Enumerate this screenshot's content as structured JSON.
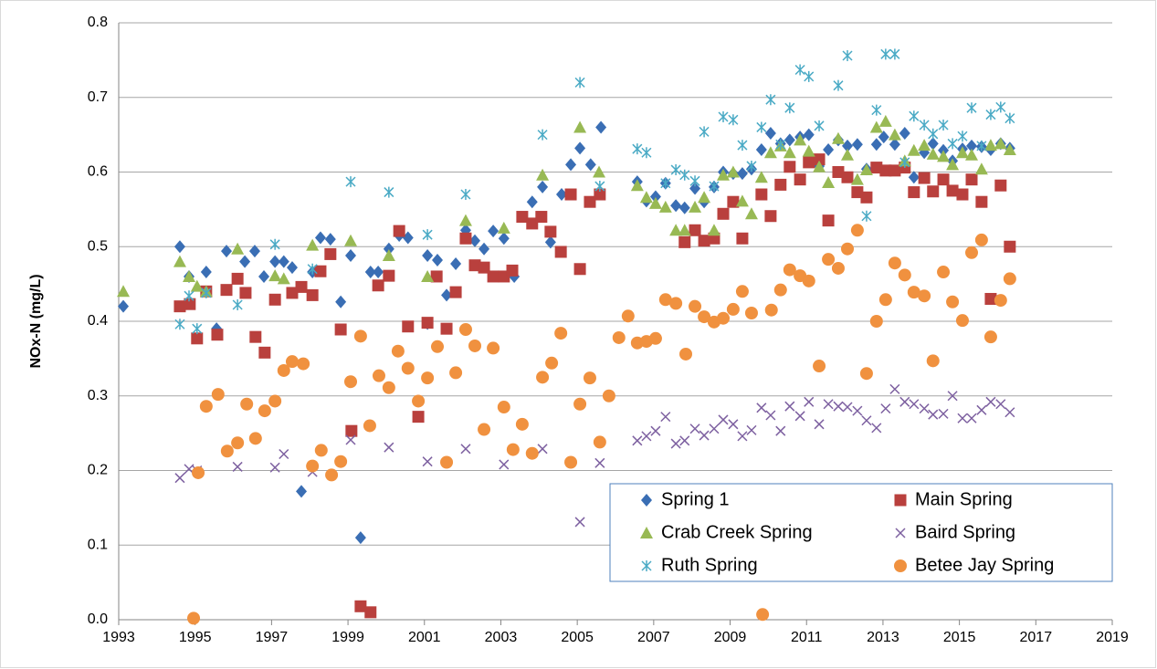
{
  "chart_data": {
    "type": "scatter",
    "y_label": "NOx-N (mg/L)",
    "xlim": [
      1993,
      2019
    ],
    "xticks": [
      1993,
      1995,
      1997,
      1999,
      2001,
      2003,
      2005,
      2007,
      2009,
      2011,
      2013,
      2015,
      2017,
      2019
    ],
    "ylim": [
      0,
      0.8
    ],
    "yticks": [
      {
        "value": 0,
        "label": "0.0"
      },
      0.1,
      0.2,
      0.3,
      0.4,
      0.5,
      0.6,
      0.7,
      0.8
    ],
    "grid": true,
    "legend": "bottom-right",
    "series": [
      {
        "name": "Spring 1",
        "color": "#3a6eb4",
        "marker": "diamond",
        "x": [
          1993.12,
          1994.6,
          1994.84,
          1995.29,
          1995.56,
          1995.82,
          1996.3,
          1996.56,
          1996.8,
          1997.09,
          1997.32,
          1997.54,
          1997.78,
          1998.07,
          1998.28,
          1998.54,
          1998.81,
          1999.07,
          1999.33,
          1999.59,
          1999.79,
          2000.07,
          2000.34,
          2000.57,
          2001.08,
          2001.08,
          2001.34,
          2001.58,
          2001.82,
          2002.08,
          2002.32,
          2002.56,
          2002.8,
          2003.08,
          2003.35,
          2003.82,
          2004.09,
          2004.3,
          2004.59,
          2004.83,
          2005.07,
          2005.35,
          2005.62,
          2006.57,
          2006.81,
          2007.05,
          2007.31,
          2007.58,
          2007.81,
          2008.08,
          2008.32,
          2008.58,
          2008.82,
          2009.08,
          2009.32,
          2009.56,
          2009.82,
          2010.06,
          2010.32,
          2010.56,
          2010.83,
          2011.06,
          2011.33,
          2011.57,
          2011.83,
          2012.07,
          2012.33,
          2012.57,
          2012.83,
          2013.02,
          2013.31,
          2013.57,
          2013.81,
          2014.08,
          2014.31,
          2014.58,
          2014.82,
          2015.08,
          2015.32,
          2015.58,
          2015.82,
          2016.08,
          2016.32
        ],
        "values": [
          0.42,
          0.5,
          0.46,
          0.466,
          0.39,
          0.494,
          0.48,
          0.494,
          0.46,
          0.48,
          0.48,
          0.472,
          0.172,
          0.466,
          0.512,
          0.51,
          0.426,
          0.488,
          0.11,
          0.466,
          0.466,
          0.497,
          0.515,
          0.512,
          0.397,
          0.488,
          0.482,
          0.435,
          0.477,
          0.522,
          0.508,
          0.497,
          0.521,
          0.511,
          0.46,
          0.56,
          0.58,
          0.506,
          0.57,
          0.61,
          0.632,
          0.61,
          0.66,
          0.587,
          0.561,
          0.567,
          0.585,
          0.555,
          0.552,
          0.578,
          0.56,
          0.58,
          0.6,
          0.598,
          0.598,
          0.604,
          0.63,
          0.652,
          0.638,
          0.643,
          0.647,
          0.65,
          0.608,
          0.63,
          0.643,
          0.635,
          0.637,
          0.604,
          0.637,
          0.647,
          0.637,
          0.652,
          0.593,
          0.626,
          0.638,
          0.629,
          0.615,
          0.631,
          0.635,
          0.634,
          0.63,
          0.638,
          0.632
        ]
      },
      {
        "name": "Main Spring",
        "color": "#b9403d",
        "marker": "square",
        "x": [
          1994.6,
          1994.86,
          1995.05,
          1995.29,
          1995.58,
          1995.82,
          1996.11,
          1996.32,
          1996.58,
          1996.82,
          1997.09,
          1997.54,
          1997.78,
          1998.07,
          1998.28,
          1998.54,
          1998.81,
          1999.09,
          1999.33,
          1999.59,
          1999.79,
          2000.07,
          2000.34,
          2000.57,
          2000.84,
          2001.08,
          2001.32,
          2001.58,
          2001.82,
          2002.08,
          2002.32,
          2002.56,
          2002.8,
          2003.08,
          2003.3,
          2003.56,
          2003.82,
          2004.06,
          2004.3,
          2004.57,
          2004.83,
          2005.07,
          2005.33,
          2005.59,
          2007.81,
          2008.08,
          2008.32,
          2008.58,
          2008.82,
          2009.08,
          2009.32,
          2009.82,
          2010.06,
          2010.32,
          2010.56,
          2010.83,
          2011.06,
          2011.33,
          2011.57,
          2011.83,
          2012.07,
          2012.33,
          2012.57,
          2012.83,
          2013.07,
          2013.31,
          2013.57,
          2013.81,
          2014.08,
          2014.31,
          2014.58,
          2014.82,
          2015.08,
          2015.32,
          2015.58,
          2015.82,
          2016.08,
          2016.32
        ],
        "values": [
          0.42,
          0.423,
          0.377,
          0.44,
          0.382,
          0.442,
          0.457,
          0.438,
          0.379,
          0.358,
          0.429,
          0.438,
          0.446,
          0.435,
          0.467,
          0.49,
          0.389,
          0.253,
          0.018,
          0.01,
          0.448,
          0.461,
          0.521,
          0.393,
          0.272,
          0.398,
          0.46,
          0.39,
          0.439,
          0.511,
          0.475,
          0.472,
          0.46,
          0.46,
          0.468,
          0.54,
          0.531,
          0.54,
          0.52,
          0.493,
          0.57,
          0.47,
          0.56,
          0.57,
          0.506,
          0.522,
          0.508,
          0.511,
          0.544,
          0.56,
          0.511,
          0.57,
          0.541,
          0.583,
          0.607,
          0.59,
          0.613,
          0.617,
          0.535,
          0.6,
          0.593,
          0.573,
          0.566,
          0.606,
          0.602,
          0.602,
          0.606,
          0.573,
          0.592,
          0.574,
          0.59,
          0.575,
          0.57,
          0.59,
          0.56,
          0.43,
          0.582,
          0.5
        ]
      },
      {
        "name": "Crab Creek Spring",
        "color": "#98b954",
        "marker": "triangle",
        "x": [
          1993.12,
          1994.6,
          1994.84,
          1995.05,
          1995.29,
          1996.11,
          1997.09,
          1997.32,
          1998.07,
          1999.07,
          2000.07,
          2001.08,
          2002.08,
          2003.08,
          2004.09,
          2005.07,
          2005.57,
          2006.57,
          2006.81,
          2007.05,
          2007.31,
          2007.58,
          2007.81,
          2008.08,
          2008.32,
          2008.58,
          2008.82,
          2009.08,
          2009.32,
          2009.56,
          2009.82,
          2010.06,
          2010.32,
          2010.56,
          2010.83,
          2011.06,
          2011.33,
          2011.57,
          2011.83,
          2012.07,
          2012.33,
          2012.57,
          2012.83,
          2013.07,
          2013.31,
          2013.57,
          2013.81,
          2014.08,
          2014.31,
          2014.58,
          2014.82,
          2015.08,
          2015.32,
          2015.58,
          2015.82,
          2016.08,
          2016.32
        ],
        "values": [
          0.44,
          0.48,
          0.46,
          0.447,
          0.44,
          0.497,
          0.461,
          0.457,
          0.502,
          0.508,
          0.488,
          0.46,
          0.535,
          0.525,
          0.596,
          0.66,
          0.6,
          0.582,
          0.566,
          0.558,
          0.553,
          0.522,
          0.522,
          0.553,
          0.566,
          0.522,
          0.596,
          0.6,
          0.561,
          0.544,
          0.593,
          0.626,
          0.635,
          0.626,
          0.643,
          0.628,
          0.607,
          0.586,
          0.645,
          0.623,
          0.59,
          0.603,
          0.66,
          0.668,
          0.65,
          0.615,
          0.629,
          0.636,
          0.624,
          0.621,
          0.61,
          0.626,
          0.623,
          0.604,
          0.636,
          0.638,
          0.63
        ]
      },
      {
        "name": "Baird Spring",
        "color": "#7d60a0",
        "marker": "x",
        "x": [
          1994.6,
          1994.84,
          1995.05,
          1996.11,
          1997.09,
          1997.32,
          1998.07,
          1999.07,
          2000.07,
          2001.08,
          2002.08,
          2003.08,
          2004.09,
          2005.07,
          2005.59,
          2006.57,
          2006.81,
          2007.05,
          2007.31,
          2007.58,
          2007.81,
          2008.08,
          2008.32,
          2008.58,
          2008.82,
          2009.08,
          2009.32,
          2009.56,
          2009.82,
          2010.06,
          2010.32,
          2010.56,
          2010.83,
          2011.06,
          2011.33,
          2011.57,
          2011.83,
          2012.07,
          2012.33,
          2012.57,
          2012.83,
          2013.07,
          2013.31,
          2013.57,
          2013.81,
          2014.08,
          2014.31,
          2014.58,
          2014.82,
          2015.08,
          2015.32,
          2015.58,
          2015.82,
          2016.08,
          2016.32
        ],
        "values": [
          0.19,
          0.202,
          0.2,
          0.205,
          0.204,
          0.222,
          0.198,
          0.241,
          0.231,
          0.212,
          0.229,
          0.208,
          0.229,
          0.131,
          0.21,
          0.24,
          0.246,
          0.253,
          0.272,
          0.236,
          0.24,
          0.256,
          0.247,
          0.256,
          0.268,
          0.262,
          0.246,
          0.254,
          0.284,
          0.274,
          0.253,
          0.286,
          0.273,
          0.292,
          0.262,
          0.289,
          0.286,
          0.285,
          0.28,
          0.267,
          0.257,
          0.283,
          0.309,
          0.292,
          0.289,
          0.283,
          0.275,
          0.276,
          0.3,
          0.27,
          0.27,
          0.281,
          0.292,
          0.289,
          0.278
        ]
      },
      {
        "name": "Ruth Spring",
        "color": "#4aaac5",
        "marker": "asterisk",
        "x": [
          1994.6,
          1994.84,
          1995.05,
          1995.29,
          1996.11,
          1997.09,
          1998.07,
          1999.07,
          2000.07,
          2001.08,
          2002.08,
          2004.09,
          2005.07,
          2005.59,
          2006.57,
          2006.81,
          2007.31,
          2007.58,
          2007.81,
          2008.08,
          2008.32,
          2008.58,
          2008.82,
          2009.08,
          2009.32,
          2009.56,
          2009.82,
          2010.06,
          2010.32,
          2010.56,
          2010.83,
          2011.06,
          2011.33,
          2011.83,
          2012.07,
          2012.57,
          2012.83,
          2013.07,
          2013.31,
          2013.57,
          2013.81,
          2014.08,
          2014.31,
          2014.58,
          2014.82,
          2015.08,
          2015.32,
          2015.58,
          2015.82,
          2016.08,
          2016.32
        ],
        "values": [
          0.396,
          0.434,
          0.39,
          0.438,
          0.422,
          0.503,
          0.47,
          0.587,
          0.573,
          0.516,
          0.57,
          0.65,
          0.72,
          0.581,
          0.631,
          0.626,
          0.585,
          0.603,
          0.596,
          0.588,
          0.654,
          0.581,
          0.674,
          0.67,
          0.636,
          0.608,
          0.66,
          0.697,
          0.637,
          0.686,
          0.737,
          0.728,
          0.662,
          0.716,
          0.756,
          0.541,
          0.683,
          0.758,
          0.758,
          0.613,
          0.675,
          0.663,
          0.651,
          0.663,
          0.638,
          0.648,
          0.686,
          0.635,
          0.677,
          0.687,
          0.672
        ]
      },
      {
        "name": "Betee Jay Spring",
        "color": "#f0913f",
        "marker": "circle",
        "x": [
          1994.96,
          1995.08,
          1995.29,
          1995.6,
          1995.84,
          1996.11,
          1996.35,
          1996.58,
          1996.82,
          1997.09,
          1997.32,
          1997.54,
          1997.83,
          1998.07,
          1998.3,
          1998.57,
          1998.81,
          1999.07,
          1999.33,
          1999.57,
          1999.81,
          2000.07,
          2000.31,
          2000.57,
          2000.84,
          2001.08,
          2001.34,
          2001.58,
          2001.82,
          2002.08,
          2002.32,
          2002.56,
          2002.8,
          2003.08,
          2003.32,
          2003.56,
          2003.82,
          2004.09,
          2004.33,
          2004.57,
          2004.83,
          2005.07,
          2005.33,
          2005.59,
          2005.83,
          2006.09,
          2006.33,
          2006.57,
          2006.81,
          2007.05,
          2007.31,
          2007.58,
          2007.84,
          2008.08,
          2008.32,
          2008.58,
          2008.82,
          2009.08,
          2009.32,
          2009.56,
          2009.85,
          2010.08,
          2010.32,
          2010.56,
          2010.83,
          2011.06,
          2011.33,
          2011.57,
          2011.83,
          2012.07,
          2012.33,
          2012.57,
          2012.83,
          2013.07,
          2013.31,
          2013.57,
          2013.81,
          2014.08,
          2014.31,
          2014.58,
          2014.82,
          2015.08,
          2015.32,
          2015.58,
          2015.82,
          2016.08,
          2016.32
        ],
        "values": [
          0.002,
          0.197,
          0.286,
          0.302,
          0.226,
          0.237,
          0.289,
          0.243,
          0.28,
          0.293,
          0.334,
          0.346,
          0.343,
          0.206,
          0.227,
          0.194,
          0.212,
          0.319,
          0.38,
          0.26,
          0.327,
          0.311,
          0.36,
          0.337,
          0.293,
          0.324,
          0.366,
          0.211,
          0.331,
          0.389,
          0.367,
          0.255,
          0.364,
          0.285,
          0.228,
          0.262,
          0.223,
          0.325,
          0.344,
          0.384,
          0.211,
          0.289,
          0.324,
          0.238,
          0.3,
          0.378,
          0.407,
          0.371,
          0.373,
          0.377,
          0.429,
          0.424,
          0.356,
          0.42,
          0.406,
          0.399,
          0.404,
          0.416,
          0.44,
          0.411,
          0.007,
          0.415,
          0.442,
          0.469,
          0.461,
          0.454,
          0.34,
          0.483,
          0.471,
          0.497,
          0.522,
          0.33,
          0.4,
          0.429,
          0.478,
          0.462,
          0.439,
          0.434,
          0.347,
          0.466,
          0.426,
          0.401,
          0.492,
          0.509,
          0.379,
          0.428,
          0.457
        ]
      }
    ]
  }
}
